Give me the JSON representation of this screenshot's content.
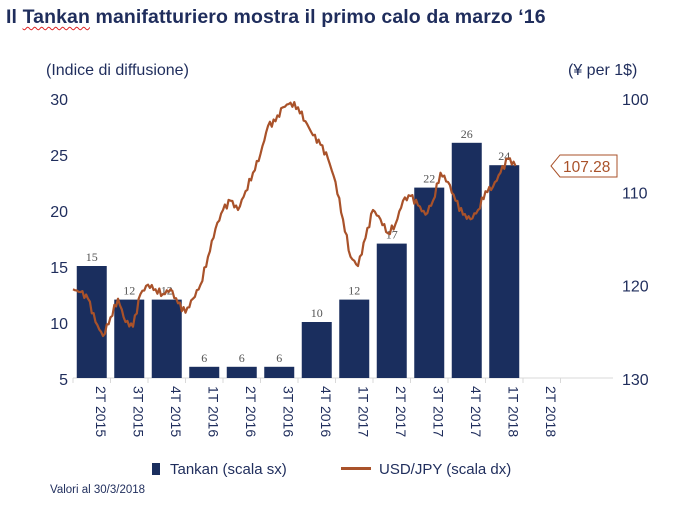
{
  "title": {
    "prefix": "Il ",
    "highlight": "Tankan",
    "rest": " manifatturiero mostra il primo calo da marzo ‘16"
  },
  "axis_units": {
    "left": "(Indice di diffusione)",
    "right": "(¥ per 1$)"
  },
  "note": "Valori al 30/3/2018",
  "colors": {
    "bar": "#1a2e5e",
    "line": "#a9522a",
    "text": "#1f2d5c",
    "callout_text": "#a9522a"
  },
  "chart_data": {
    "type": "bar+line",
    "title": "Il Tankan manifatturiero mostra il primo calo da marzo ‘16",
    "categories": [
      "2T 2015",
      "3T 2015",
      "4T 2015",
      "1T 2016",
      "2T 2016",
      "3T 2016",
      "4T 2016",
      "1T 2017",
      "2T 2017",
      "3T 2017",
      "4T 2017",
      "1T 2018",
      "2T 2018"
    ],
    "left_axis": {
      "label": "(Indice di diffusione)",
      "range": [
        5,
        30
      ],
      "ticks": [
        5,
        10,
        15,
        20,
        25,
        30
      ]
    },
    "right_axis": {
      "label": "(¥ per 1$)",
      "range": [
        100,
        130
      ],
      "inverted": true,
      "ticks": [
        100,
        110,
        120,
        130
      ]
    },
    "series": [
      {
        "name": "Tankan (scala sx)",
        "type": "bar",
        "axis": "left",
        "values": [
          15,
          12,
          12,
          6,
          6,
          6,
          10,
          12,
          17,
          22,
          26,
          24,
          null
        ],
        "labels": [
          "15",
          "12",
          "12",
          "6",
          "6",
          "6",
          "10",
          "12",
          "17",
          "22",
          "26",
          "24",
          ""
        ]
      },
      {
        "name": "USD/JPY (scala dx)",
        "type": "line",
        "axis": "right",
        "x": [
          0.0,
          0.2,
          0.4,
          0.6,
          0.8,
          1.0,
          1.2,
          1.4,
          1.6,
          1.8,
          2.0,
          2.2,
          2.4,
          2.6,
          2.8,
          3.0,
          3.2,
          3.4,
          3.6,
          3.8,
          4.0,
          4.2,
          4.4,
          4.6,
          4.8,
          5.0,
          5.2,
          5.4,
          5.6,
          5.8,
          6.0,
          6.2,
          6.4,
          6.6,
          6.8,
          7.0,
          7.2,
          7.4,
          7.6,
          7.8,
          8.0,
          8.2,
          8.4,
          8.6,
          8.8,
          9.0,
          9.2,
          9.4,
          9.6,
          9.8,
          10.0,
          10.2,
          10.4,
          10.6,
          10.8,
          11.0,
          11.2,
          11.4,
          11.6,
          11.8
        ],
        "values": [
          120.5,
          120.8,
          121.5,
          124.0,
          125.5,
          123.5,
          121.5,
          124.0,
          124.5,
          121.0,
          120.0,
          120.5,
          121.0,
          120.5,
          122.0,
          123.0,
          121.5,
          120.0,
          117.0,
          114.0,
          112.0,
          111.0,
          112.0,
          110.0,
          108.0,
          106.0,
          103.0,
          102.5,
          101.0,
          100.5,
          101.0,
          102.5,
          104.0,
          105.0,
          106.5,
          109.0,
          113.0,
          117.0,
          118.0,
          115.0,
          112.0,
          113.0,
          114.5,
          113.5,
          111.0,
          110.5,
          111.5,
          112.5,
          111.0,
          108.0,
          109.0,
          111.0,
          112.5,
          113.0,
          112.0,
          110.0,
          109.5,
          108.0,
          106.5,
          107.28
        ],
        "last_value": "107.28"
      }
    ],
    "legend": {
      "placement": "bottom",
      "entries": [
        "Tankan (scala sx)",
        "USD/JPY (scala dx)"
      ]
    }
  }
}
